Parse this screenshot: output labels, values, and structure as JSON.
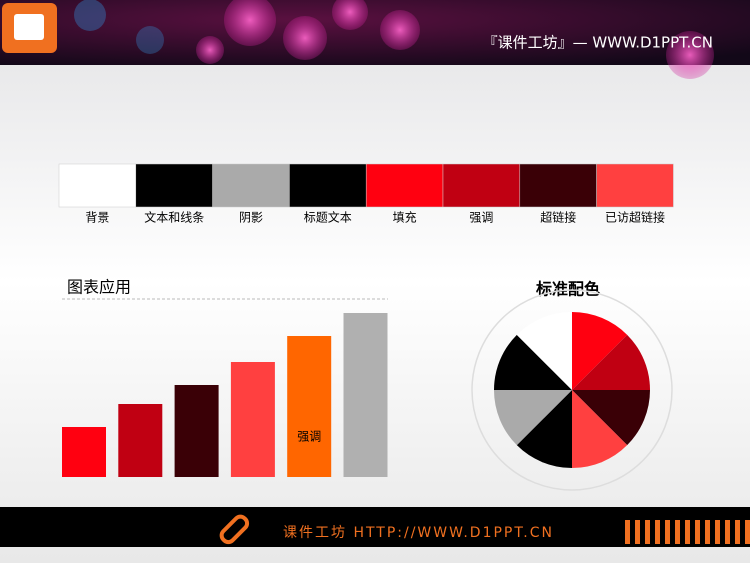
{
  "header": {
    "site": "『课件工坊』— WWW.D1PPT.CN"
  },
  "palette": [
    {
      "name": "背景",
      "color": "#ffffff"
    },
    {
      "name": "文本和线条",
      "color": "#000000"
    },
    {
      "name": "阴影",
      "color": "#aaaaaa"
    },
    {
      "name": "标题文本",
      "color": "#000000"
    },
    {
      "name": "填充",
      "color": "#ff0010"
    },
    {
      "name": "强调",
      "color": "#c00012"
    },
    {
      "name": "超链接",
      "color": "#3a0006"
    },
    {
      "name": "已访超链接",
      "color": "#ff4040"
    }
  ],
  "bar_chart": {
    "title": "图表应用",
    "values": [
      50,
      73,
      92,
      115,
      141,
      164
    ],
    "colors": [
      "#ff0010",
      "#c00012",
      "#3a0006",
      "#ff4040",
      "#ff6600",
      "#b0b0b0"
    ],
    "highlight_label": "强调"
  },
  "pie_chart": {
    "title": "标准配色",
    "values": [
      1,
      1,
      1,
      1,
      1,
      1,
      1,
      1
    ],
    "colors": [
      "#ff0010",
      "#c00012",
      "#3a0006",
      "#ff4040",
      "#000000",
      "#aaaaaa",
      "#000000",
      "#ffffff"
    ]
  },
  "footer": {
    "text": "课件工坊 HTTP://WWW.D1PPT.CN"
  }
}
